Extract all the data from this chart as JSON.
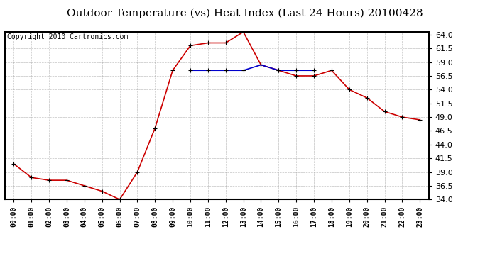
{
  "title": "Outdoor Temperature (vs) Heat Index (Last 24 Hours) 20100428",
  "copyright": "Copyright 2010 Cartronics.com",
  "hours": [
    "00:00",
    "01:00",
    "02:00",
    "03:00",
    "04:00",
    "05:00",
    "06:00",
    "07:00",
    "08:00",
    "09:00",
    "10:00",
    "11:00",
    "12:00",
    "13:00",
    "14:00",
    "15:00",
    "16:00",
    "17:00",
    "18:00",
    "19:00",
    "20:00",
    "21:00",
    "22:00",
    "23:00"
  ],
  "temp": [
    40.5,
    38.0,
    37.5,
    37.5,
    36.5,
    35.5,
    34.0,
    39.0,
    47.0,
    57.5,
    62.0,
    62.5,
    62.5,
    64.5,
    58.5,
    57.5,
    56.5,
    56.5,
    57.5,
    54.0,
    52.5,
    50.0,
    49.0,
    48.5
  ],
  "heat_index": [
    null,
    null,
    null,
    null,
    null,
    null,
    null,
    null,
    null,
    null,
    57.5,
    57.5,
    57.5,
    57.5,
    58.5,
    57.5,
    57.5,
    57.5,
    null,
    null,
    null,
    null,
    null,
    null
  ],
  "temp_color": "#cc0000",
  "heat_color": "#0000cc",
  "ylim": [
    34.0,
    64.5
  ],
  "ytick_min": 34.0,
  "ytick_max": 64.0,
  "ytick_step": 2.5,
  "yticks": [
    34.0,
    36.5,
    39.0,
    41.5,
    44.0,
    46.5,
    49.0,
    51.5,
    54.0,
    56.5,
    59.0,
    61.5,
    64.0
  ],
  "bg_color": "#ffffff",
  "grid_color": "#aaaaaa",
  "title_fontsize": 11,
  "copyright_fontsize": 7,
  "marker": "+",
  "marker_size": 5,
  "linewidth": 1.2
}
